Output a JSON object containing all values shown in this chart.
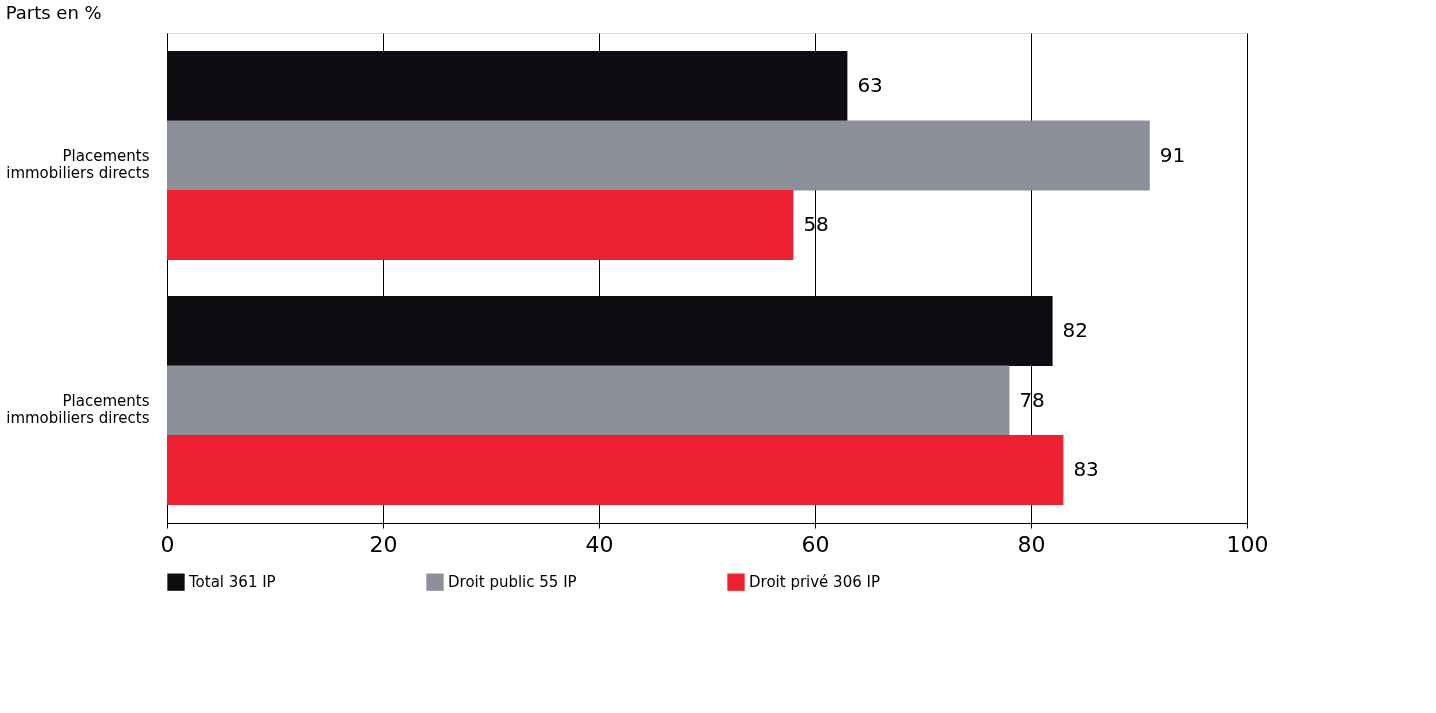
{
  "chart_data": {
    "type": "bar",
    "orientation": "horizontal",
    "title": "Parts en %",
    "categories": [
      "Placements immobiliers directs",
      "Placements immobiliers directs"
    ],
    "series": [
      {
        "name": "Total 361 IP",
        "color": "#0f0d12",
        "values": [
          63,
          82
        ]
      },
      {
        "name": "Droit public 55 IP",
        "color": "#8c9098",
        "values": [
          91,
          78
        ]
      },
      {
        "name": "Droit privé 306 IP",
        "color": "#ec2030",
        "values": [
          58,
          83
        ]
      }
    ],
    "xlim": [
      0,
      100
    ],
    "xticks": [
      0,
      20,
      40,
      60,
      80,
      100
    ],
    "grid": "x",
    "legend": "bottom",
    "data_labels": true
  }
}
